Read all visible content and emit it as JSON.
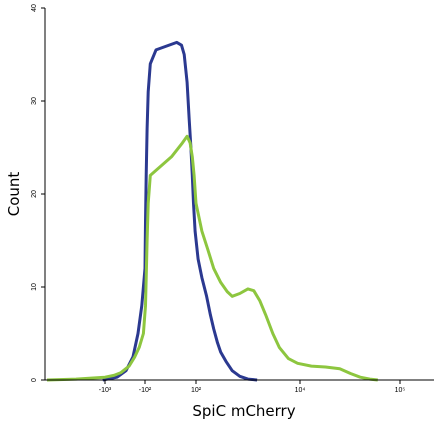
{
  "chart_data": {
    "type": "line",
    "title": "",
    "xlabel": "SpiC mCherry",
    "ylabel": "Count",
    "xscale": "biexponential",
    "ylim": [
      0,
      40
    ],
    "x_ticks": [
      {
        "value": -1000,
        "label": "-10³"
      },
      {
        "value": -100,
        "label": "-10²"
      },
      {
        "value": 100,
        "label": "10²"
      },
      {
        "value": 10000,
        "label": "10⁴"
      },
      {
        "value": 100000,
        "label": "10⁵"
      }
    ],
    "y_ticks": [
      0,
      10,
      20,
      30,
      40
    ],
    "grid": false,
    "legend": "none",
    "series": [
      {
        "color": "#2b3990",
        "points": [
          [
            -1200,
            0
          ],
          [
            -500,
            0.3
          ],
          [
            -300,
            1
          ],
          [
            -200,
            2.5
          ],
          [
            -150,
            5
          ],
          [
            -120,
            8
          ],
          [
            -100,
            12
          ],
          [
            -80,
            17
          ],
          [
            -60,
            22
          ],
          [
            -40,
            27
          ],
          [
            -25,
            31
          ],
          [
            -10,
            34
          ],
          [
            0,
            35.5
          ],
          [
            10,
            36.3
          ],
          [
            18,
            36
          ],
          [
            25,
            35
          ],
          [
            35,
            32
          ],
          [
            45,
            28
          ],
          [
            55,
            25
          ],
          [
            65,
            22
          ],
          [
            75,
            19
          ],
          [
            90,
            16
          ],
          [
            110,
            13
          ],
          [
            130,
            11
          ],
          [
            160,
            9
          ],
          [
            190,
            7
          ],
          [
            220,
            5.5
          ],
          [
            260,
            4
          ],
          [
            300,
            3
          ],
          [
            380,
            2
          ],
          [
            500,
            1
          ],
          [
            700,
            0.4
          ],
          [
            1000,
            0.1
          ],
          [
            1500,
            0
          ]
        ]
      },
      {
        "color": "#8dc63f",
        "points": [
          [
            -100000,
            0
          ],
          [
            -10000,
            0.1
          ],
          [
            -3000,
            0.2
          ],
          [
            -1000,
            0.3
          ],
          [
            -600,
            0.5
          ],
          [
            -400,
            0.8
          ],
          [
            -250,
            1.5
          ],
          [
            -180,
            2.5
          ],
          [
            -140,
            3.5
          ],
          [
            -110,
            5
          ],
          [
            -80,
            8
          ],
          [
            -60,
            11
          ],
          [
            -40,
            15
          ],
          [
            -25,
            19
          ],
          [
            -10,
            22
          ],
          [
            5,
            24
          ],
          [
            20,
            25.5
          ],
          [
            35,
            26.2
          ],
          [
            50,
            25.5
          ],
          [
            65,
            24
          ],
          [
            80,
            22
          ],
          [
            100,
            19
          ],
          [
            130,
            16
          ],
          [
            170,
            14
          ],
          [
            220,
            12
          ],
          [
            300,
            10.5
          ],
          [
            400,
            9.5
          ],
          [
            500,
            9
          ],
          [
            700,
            9.3
          ],
          [
            1000,
            9.8
          ],
          [
            1300,
            9.6
          ],
          [
            1700,
            8.5
          ],
          [
            2200,
            7
          ],
          [
            3000,
            5
          ],
          [
            4000,
            3.5
          ],
          [
            6000,
            2.3
          ],
          [
            9000,
            1.8
          ],
          [
            13000,
            1.5
          ],
          [
            18000,
            1.4
          ],
          [
            25000,
            1.2
          ],
          [
            32000,
            0.7
          ],
          [
            40000,
            0.3
          ],
          [
            50000,
            0.1
          ],
          [
            60000,
            0
          ]
        ]
      }
    ]
  }
}
